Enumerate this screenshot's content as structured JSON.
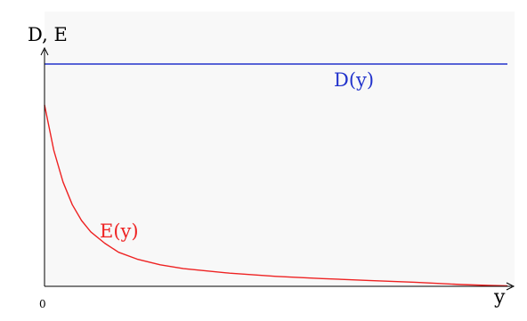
{
  "chart_data": {
    "type": "line",
    "title": "",
    "xlabel": "y",
    "ylabel": "D, E",
    "x_tick_labels": [
      "0"
    ],
    "xlim": [
      0,
      1
    ],
    "ylim": [
      0,
      1
    ],
    "grid": false,
    "legend": "none",
    "series": [
      {
        "name": "D(y)",
        "color": "#2233cc",
        "x": [
          0,
          1
        ],
        "y": [
          0.98,
          0.98
        ]
      },
      {
        "name": "E(y)",
        "color": "#ee2222",
        "x": [
          0,
          0.01,
          0.02,
          0.04,
          0.06,
          0.08,
          0.1,
          0.13,
          0.16,
          0.2,
          0.25,
          0.3,
          0.4,
          0.5,
          0.6,
          0.7,
          0.8,
          0.9,
          0.96,
          1.0
        ],
        "y": [
          0.8,
          0.7,
          0.6,
          0.46,
          0.36,
          0.29,
          0.24,
          0.19,
          0.15,
          0.12,
          0.095,
          0.078,
          0.058,
          0.044,
          0.034,
          0.026,
          0.018,
          0.008,
          0.004,
          0.002
        ]
      }
    ]
  }
}
